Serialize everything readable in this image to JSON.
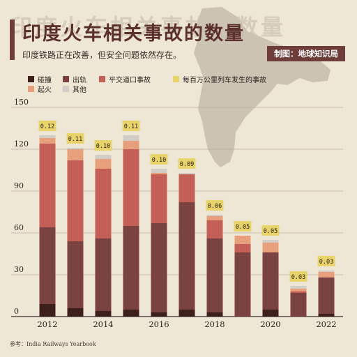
{
  "header": {
    "watermark": "印度火车相关事故的数量",
    "title": "印度火车相关事故的数量",
    "subtitle": "印度铁路正在改善，但安全问题依然存在。",
    "credit": "制图：地球知识局"
  },
  "footer": {
    "source": "参考：India Railways Yearbook"
  },
  "colors": {
    "collision": "#3d1f1c",
    "derailment": "#7a4240",
    "crossing": "#c45f55",
    "fire": "#e8a07c",
    "other": "#d2cdc6",
    "rate_badge": "#e8d36a",
    "map": "#ccc3b3"
  },
  "chart_data": {
    "type": "bar",
    "stacked": true,
    "title": "",
    "xlabel": "",
    "ylabel": "",
    "ylim": [
      0,
      150
    ],
    "yticks": [
      0,
      30,
      60,
      90,
      120,
      150
    ],
    "grid": true,
    "categories": [
      "2012",
      "2013",
      "2014",
      "2015",
      "2016",
      "2017",
      "2018",
      "2019",
      "2020",
      "2021",
      "2022"
    ],
    "xtick_labels": [
      "2012",
      "2014",
      "2016",
      "2018",
      "2020",
      "2022"
    ],
    "series": [
      {
        "name": "碰撞",
        "key": "collision",
        "values": [
          9,
          6,
          4,
          5,
          3,
          5,
          3,
          0,
          5,
          0,
          2
        ]
      },
      {
        "name": "出轨",
        "key": "derailment",
        "values": [
          55,
          48,
          52,
          60,
          64,
          77,
          53,
          46,
          41,
          17,
          26
        ]
      },
      {
        "name": "平交道口事故",
        "key": "crossing",
        "values": [
          60,
          58,
          50,
          55,
          35,
          20,
          13,
          6,
          0,
          1,
          0
        ]
      },
      {
        "name": "起火",
        "key": "fire",
        "values": [
          4,
          8,
          7,
          6,
          1,
          0,
          3,
          6,
          7,
          2,
          4
        ]
      },
      {
        "name": "其他",
        "key": "other",
        "values": [
          2,
          1,
          3,
          4,
          3,
          1,
          1,
          0,
          2,
          2,
          1
        ]
      }
    ],
    "rate_series": {
      "name": "每百万公里列车发生的事故",
      "labels": [
        "0.12",
        "0.11",
        "0.10",
        "0.11",
        "0.10",
        "0.09",
        "0.06",
        "0.05",
        "0.05",
        "0.03",
        "0.03"
      ]
    }
  }
}
